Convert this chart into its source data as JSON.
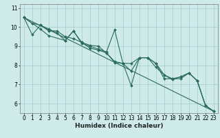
{
  "title": "",
  "xlabel": "Humidex (Indice chaleur)",
  "ylabel": "",
  "background_color": "#ceeaea",
  "grid_color": "#a8d0d0",
  "line_color": "#2a6b5e",
  "xlim": [
    -0.5,
    23.5
  ],
  "ylim": [
    5.5,
    11.2
  ],
  "xticks": [
    0,
    1,
    2,
    3,
    4,
    5,
    6,
    7,
    8,
    9,
    10,
    11,
    12,
    13,
    14,
    15,
    16,
    17,
    18,
    19,
    20,
    21,
    22,
    23
  ],
  "yticks": [
    6,
    7,
    8,
    9,
    10,
    11
  ],
  "series": [
    {
      "x": [
        0,
        1,
        2,
        3,
        4,
        5,
        6,
        7,
        8,
        9,
        10,
        11,
        12,
        13,
        14,
        15,
        16,
        17,
        18,
        19,
        20,
        21,
        22,
        23
      ],
      "y": [
        10.5,
        10.2,
        10.1,
        9.8,
        9.8,
        9.5,
        9.4,
        9.2,
        9.05,
        9.0,
        8.65,
        8.2,
        8.1,
        7.7,
        8.4,
        8.4,
        8.1,
        7.3,
        7.3,
        7.3,
        7.6,
        7.2,
        5.9,
        5.6
      ]
    },
    {
      "x": [
        0,
        1,
        2,
        3,
        4,
        5,
        6,
        7,
        8,
        9,
        10,
        11,
        12,
        13,
        14,
        15,
        16,
        17,
        18,
        19,
        20,
        21,
        22,
        23
      ],
      "y": [
        10.5,
        9.6,
        10.1,
        9.9,
        9.7,
        9.3,
        9.8,
        9.15,
        9.0,
        8.85,
        8.7,
        9.85,
        8.1,
        8.1,
        8.4,
        8.4,
        8.1,
        7.5,
        7.3,
        7.4,
        7.6,
        7.2,
        5.9,
        5.6
      ]
    },
    {
      "x": [
        0,
        2,
        3,
        5,
        6,
        7,
        8,
        9,
        10,
        11,
        12,
        13,
        14,
        15,
        16,
        17,
        18,
        19,
        20,
        21,
        22,
        23
      ],
      "y": [
        10.5,
        9.9,
        9.55,
        9.3,
        9.8,
        9.2,
        8.9,
        8.8,
        8.65,
        8.15,
        8.1,
        6.95,
        8.4,
        8.4,
        7.9,
        7.5,
        7.25,
        7.4,
        7.6,
        7.2,
        5.9,
        5.6
      ]
    },
    {
      "x": [
        0,
        23
      ],
      "y": [
        10.5,
        5.6
      ]
    }
  ],
  "marker": "D",
  "markersize": 2.0,
  "linewidth": 0.8,
  "tick_fontsize": 5.5,
  "xlabel_fontsize": 6.5
}
